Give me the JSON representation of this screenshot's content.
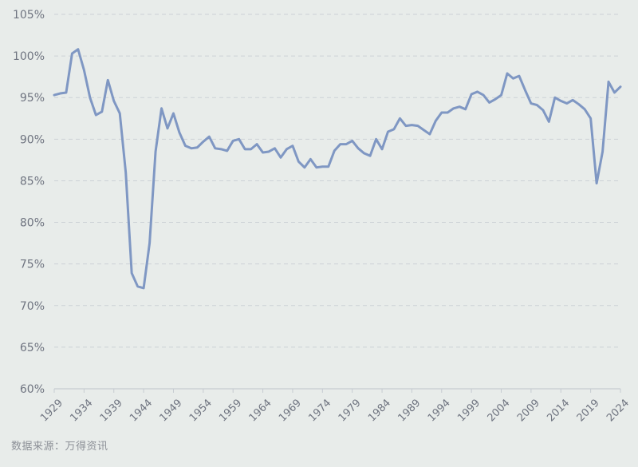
{
  "chart_data": {
    "type": "line",
    "y_tick_labels": [
      "60%",
      "65%",
      "70%",
      "75%",
      "80%",
      "85%",
      "90%",
      "95%",
      "100%",
      "105%"
    ],
    "y_ticks": [
      60,
      65,
      70,
      75,
      80,
      85,
      90,
      95,
      100,
      105
    ],
    "x_tick_labels": [
      "1929",
      "1934",
      "1939",
      "1944",
      "1949",
      "1954",
      "1959",
      "1964",
      "1969",
      "1974",
      "1979",
      "1984",
      "1989",
      "1994",
      "1999",
      "2004",
      "2009",
      "2014",
      "2019",
      "2024"
    ],
    "x_ticks": [
      1929,
      1934,
      1939,
      1944,
      1949,
      1954,
      1959,
      1964,
      1969,
      1974,
      1979,
      1984,
      1989,
      1994,
      1999,
      2004,
      2009,
      2014,
      2019,
      2024
    ],
    "xlim": [
      1929,
      2024
    ],
    "ylim": [
      60,
      105
    ],
    "grid": true,
    "line_color": "#7f97c3",
    "series": [
      {
        "x": [
          1929,
          1930,
          1931,
          1932,
          1933,
          1934,
          1935,
          1936,
          1937,
          1938,
          1939,
          1940,
          1941,
          1942,
          1943,
          1944,
          1945,
          1946,
          1947,
          1948,
          1949,
          1950,
          1951,
          1952,
          1953,
          1954,
          1955,
          1956,
          1957,
          1958,
          1959,
          1960,
          1961,
          1962,
          1963,
          1964,
          1965,
          1966,
          1967,
          1968,
          1969,
          1970,
          1971,
          1972,
          1973,
          1974,
          1975,
          1976,
          1977,
          1978,
          1979,
          1980,
          1981,
          1982,
          1983,
          1984,
          1985,
          1986,
          1987,
          1988,
          1989,
          1990,
          1991,
          1992,
          1993,
          1994,
          1995,
          1996,
          1997,
          1998,
          1999,
          2000,
          2001,
          2002,
          2003,
          2004,
          2005,
          2006,
          2007,
          2008,
          2009,
          2010,
          2011,
          2012,
          2013,
          2014,
          2015,
          2016,
          2017,
          2018,
          2019,
          2020,
          2021,
          2022,
          2023,
          2024
        ],
        "values": [
          95.3,
          95.5,
          95.6,
          100.3,
          100.8,
          98.3,
          95.0,
          92.9,
          93.3,
          97.1,
          94.6,
          93.1,
          86.0,
          73.9,
          72.3,
          72.1,
          77.5,
          88.5,
          93.7,
          91.3,
          93.1,
          90.8,
          89.2,
          88.9,
          89.0,
          89.7,
          90.3,
          88.9,
          88.8,
          88.6,
          89.8,
          90.0,
          88.8,
          88.8,
          89.4,
          88.4,
          88.5,
          88.9,
          87.8,
          88.8,
          89.2,
          87.3,
          86.6,
          87.6,
          86.6,
          86.7,
          86.7,
          88.6,
          89.4,
          89.4,
          89.8,
          88.9,
          88.3,
          88.0,
          90.0,
          88.8,
          90.9,
          91.2,
          92.5,
          91.6,
          91.7,
          91.6,
          91.1,
          90.6,
          92.2,
          93.2,
          93.2,
          93.7,
          93.9,
          93.6,
          95.4,
          95.7,
          95.3,
          94.4,
          94.8,
          95.3,
          97.9,
          97.3,
          97.6,
          95.9,
          94.3,
          94.1,
          93.5,
          92.1,
          95.0,
          94.6,
          94.3,
          94.7,
          94.2,
          93.6,
          92.5,
          84.7,
          88.5,
          96.9,
          95.6,
          96.3
        ]
      }
    ]
  },
  "source": "数据来源：万得资讯"
}
